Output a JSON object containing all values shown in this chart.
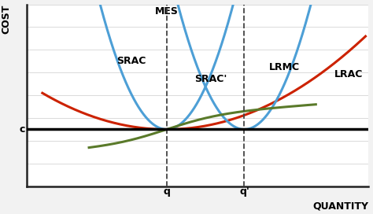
{
  "fig_width": 4.74,
  "fig_height": 2.72,
  "dpi": 100,
  "bg_color": "#f2f2f2",
  "axes_bg_color": "#ffffff",
  "ylabel": "COST",
  "xlabel": "QUANTITY",
  "label_fontsize": 9,
  "label_fontweight": "bold",
  "c_level": 6.0,
  "q_x": 5.0,
  "q2_x": 7.5,
  "xlim": [
    0.5,
    11.5
  ],
  "ylim": [
    3.5,
    11.5
  ],
  "LRAC_color": "#cc2200",
  "SRAC_color": "#4d9fd6",
  "LRMC_color": "#5a7a2a",
  "hline_color": "#000000",
  "hline_lw": 2.5,
  "curve_lw": 2.2,
  "dashed_color": "#444444",
  "annotation_fontsize": 9,
  "annotation_fontweight": "bold",
  "grid_color": "#cccccc",
  "grid_lw": 0.5,
  "num_gridlines": 9
}
